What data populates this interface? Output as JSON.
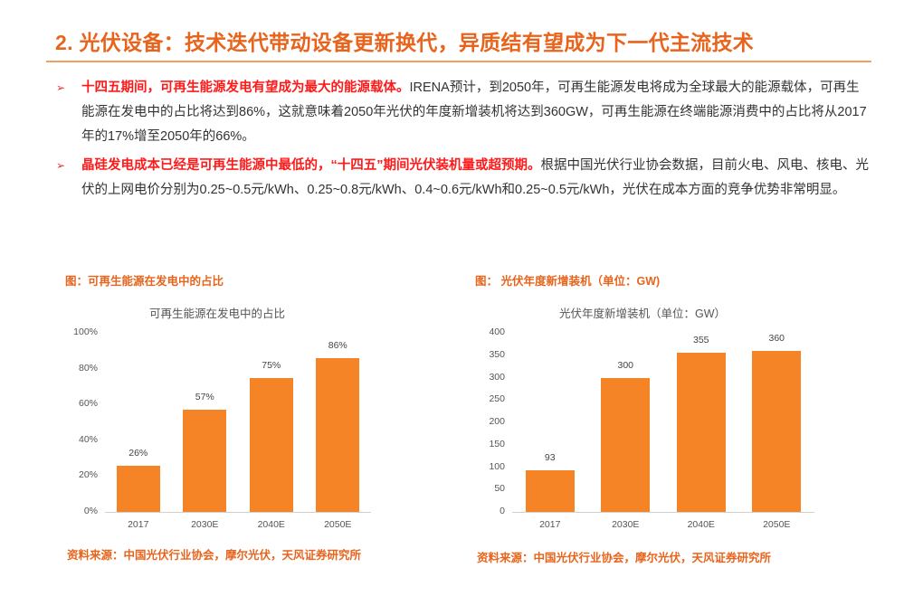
{
  "header": {
    "title": "2. 光伏设备：技术迭代带动设备更新换代，异质结有望成为下一代主流技术"
  },
  "bullets": [
    {
      "highlight": "十四五期间，可再生能源发电有望成为最大的能源载体。",
      "body": "IRENA预计，到2050年，可再生能源发电将成为全球最大的能源载体，可再生能源在发电中的占比将达到86%，这就意味着2050年光伏的年度新增装机将达到360GW，可再生能源在终端能源消费中的占比将从2017年的17%增至2050年的66%。"
    },
    {
      "highlight": "晶硅发电成本已经是可再生能源中最低的，“十四五”期间光伏装机量或超预期。",
      "body": "根据中国光伏行业协会数据，目前火电、风电、核电、光伏的上网电价分别为0.25~0.5元/kWh、0.25~0.8元/kWh、0.4~0.6元/kWh和0.25~0.5元/kWh，光伏在成本方面的竞争优势非常明显。"
    }
  ],
  "bullet_marker": "➢",
  "figures": [
    {
      "label": "图：可再生能源在发电中的占比",
      "source": "资料来源：中国光伏行业协会，摩尔光伏，天风证券研究所"
    },
    {
      "label": "图： 光伏年度新增装机（单位：GW)",
      "source": "资料来源：中国光伏行业协会，摩尔光伏，天风证券研究所"
    }
  ],
  "colors": {
    "accent": "#e8641d",
    "bar": "#f58426",
    "highlight": "#ff1a1a"
  },
  "chart_data": [
    {
      "type": "bar",
      "title": "可再生能源在发电中的占比",
      "categories": [
        "2017",
        "2030E",
        "2040E",
        "2050E"
      ],
      "values": [
        26,
        57,
        75,
        86
      ],
      "value_labels": [
        "26%",
        "57%",
        "75%",
        "86%"
      ],
      "xlabel": "",
      "ylabel": "",
      "ylim": [
        0,
        100
      ],
      "yticks": [
        "0%",
        "20%",
        "40%",
        "60%",
        "80%",
        "100%"
      ],
      "grid": false,
      "legend": "none"
    },
    {
      "type": "bar",
      "title": "光伏年度新增装机（单位：GW）",
      "categories": [
        "2017",
        "2030E",
        "2040E",
        "2050E"
      ],
      "values": [
        93,
        300,
        355,
        360
      ],
      "value_labels": [
        "93",
        "300",
        "355",
        "360"
      ],
      "xlabel": "",
      "ylabel": "",
      "ylim": [
        0,
        400
      ],
      "yticks": [
        "0",
        "50",
        "100",
        "150",
        "200",
        "250",
        "300",
        "350",
        "400"
      ],
      "grid": false,
      "legend": "none"
    }
  ]
}
